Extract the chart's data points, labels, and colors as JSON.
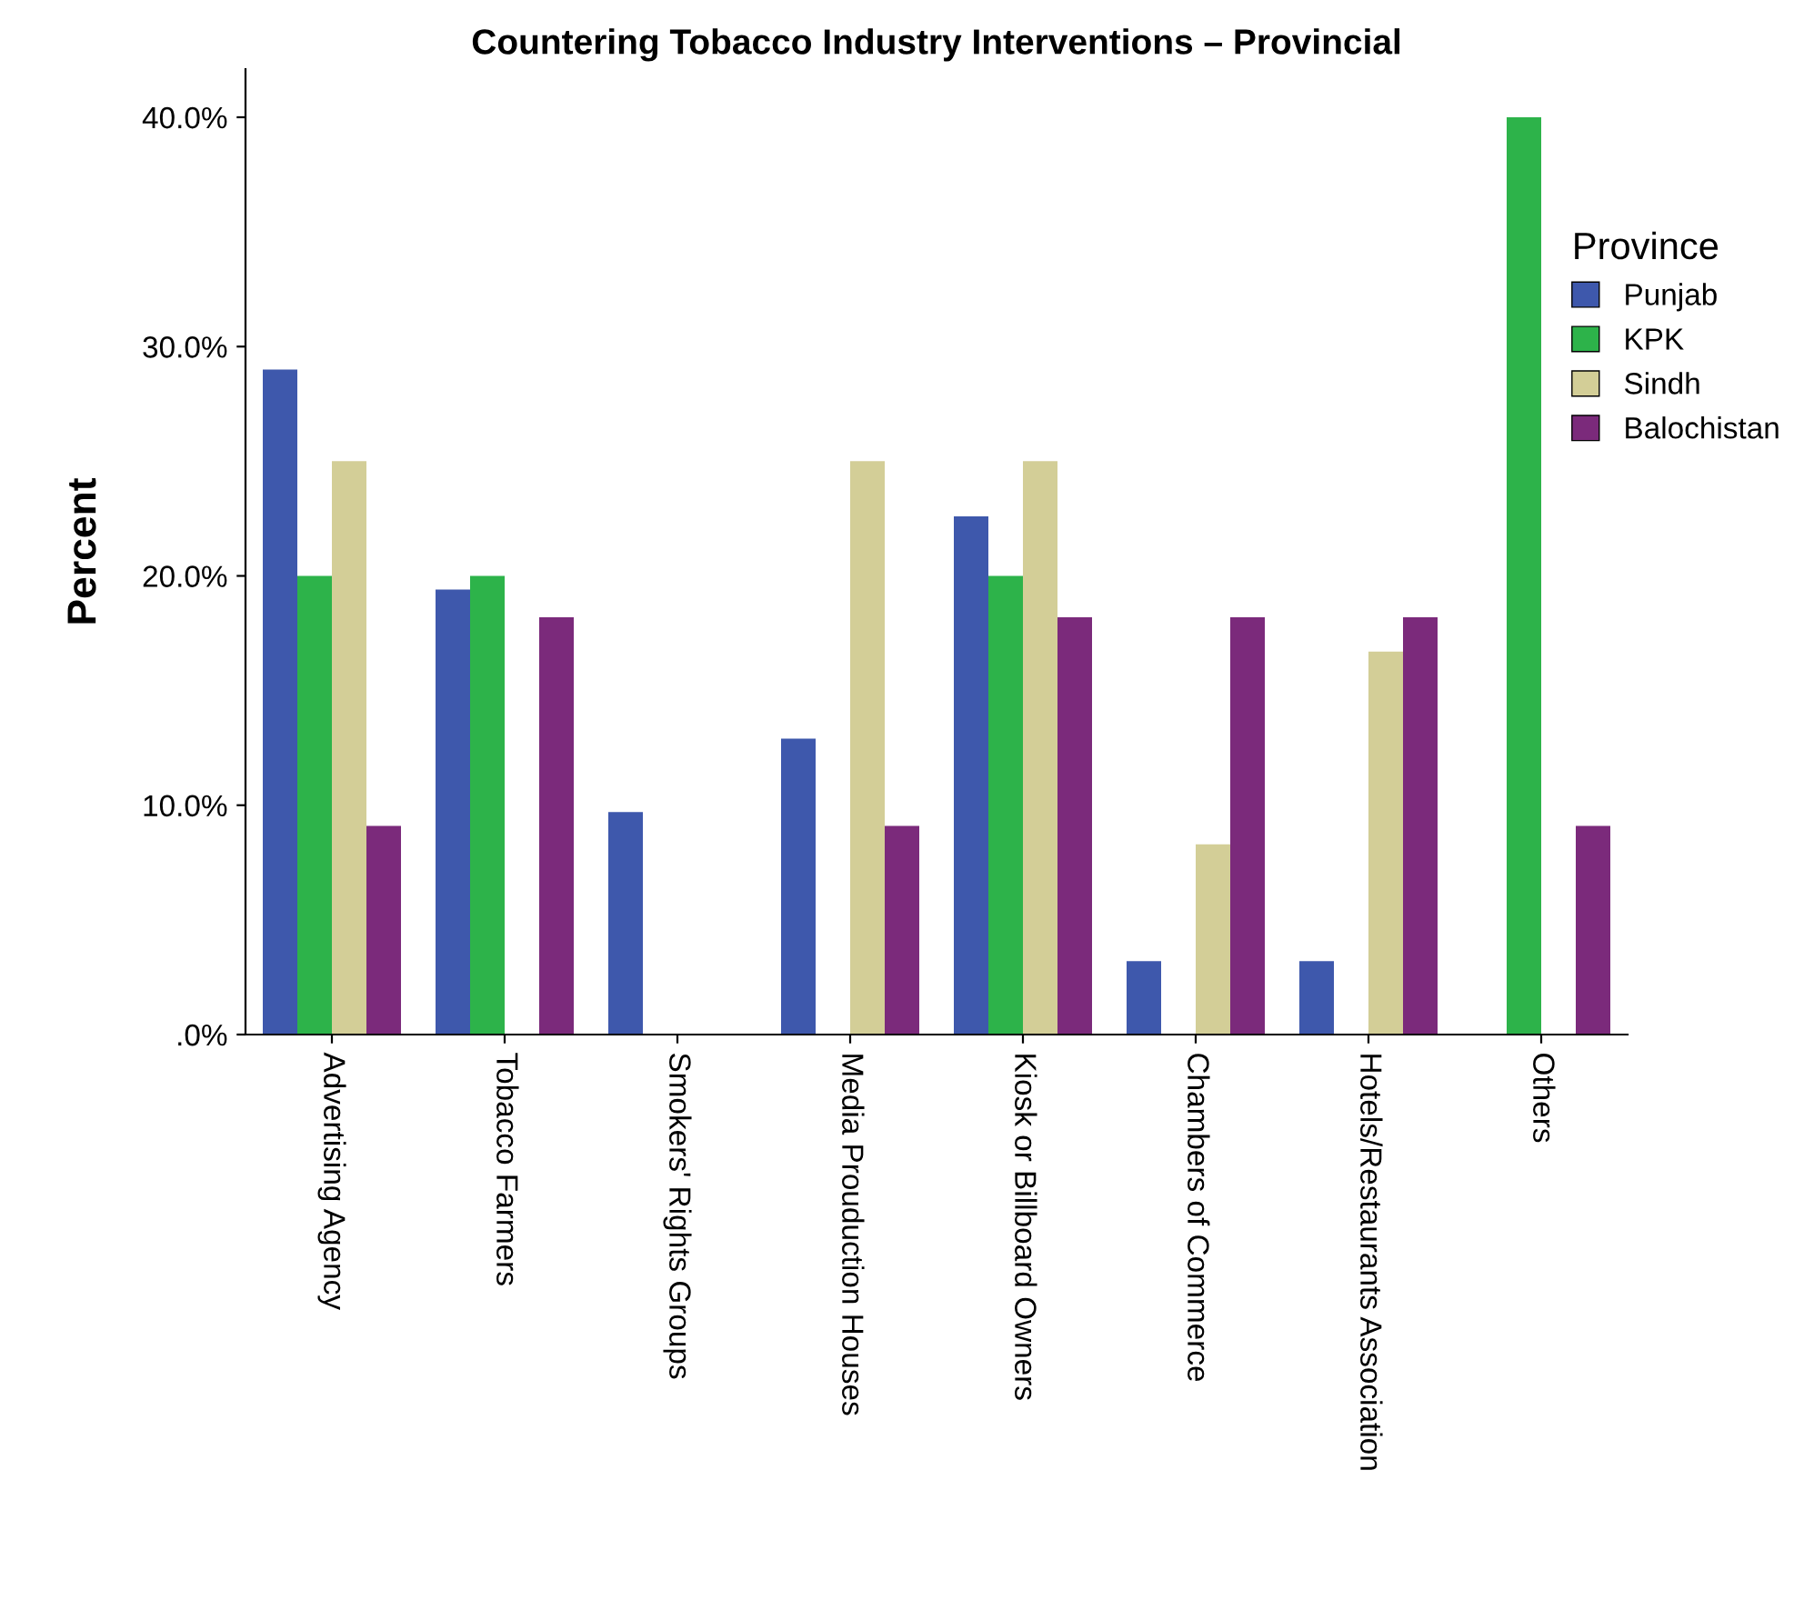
{
  "chart_data": {
    "type": "bar",
    "title": "Countering Tobacco Industry Interventions – Provincial",
    "ylabel": "Percent",
    "legend_title": "Province",
    "legend": "right",
    "categories": [
      "Advertising Agency",
      "Tobacco Farmers",
      "Smokers' Rights Groups",
      "Media Prouduction Houses",
      "Kiosk or Billboard Owners",
      "Chambers of Commerce",
      "Hotels/Restaurants Association",
      "Others"
    ],
    "series": [
      {
        "name": "Punjab",
        "color": "#3e58ac",
        "values": [
          29.0,
          19.4,
          9.7,
          12.9,
          22.6,
          3.2,
          3.2,
          0
        ]
      },
      {
        "name": "KPK",
        "color": "#2db34a",
        "values": [
          20,
          20,
          0,
          0,
          20,
          0,
          0,
          40
        ]
      },
      {
        "name": "Sindh",
        "color": "#d3ce97",
        "values": [
          25,
          0,
          0,
          25,
          25,
          8.3,
          16.7,
          0
        ]
      },
      {
        "name": "Balochistan",
        "color": "#7b2a7b",
        "values": [
          9.1,
          18.2,
          0,
          9.1,
          18.2,
          18.2,
          18.2,
          9.1
        ]
      }
    ],
    "ylim": [
      0,
      42.1
    ],
    "yticks": [
      {
        "value": 0,
        "label": ".0%"
      },
      {
        "value": 10,
        "label": "10.0%"
      },
      {
        "value": 20,
        "label": "20.0%"
      },
      {
        "value": 30,
        "label": "30.0%"
      },
      {
        "value": 40,
        "label": "40.0%"
      }
    ],
    "grid": false
  }
}
